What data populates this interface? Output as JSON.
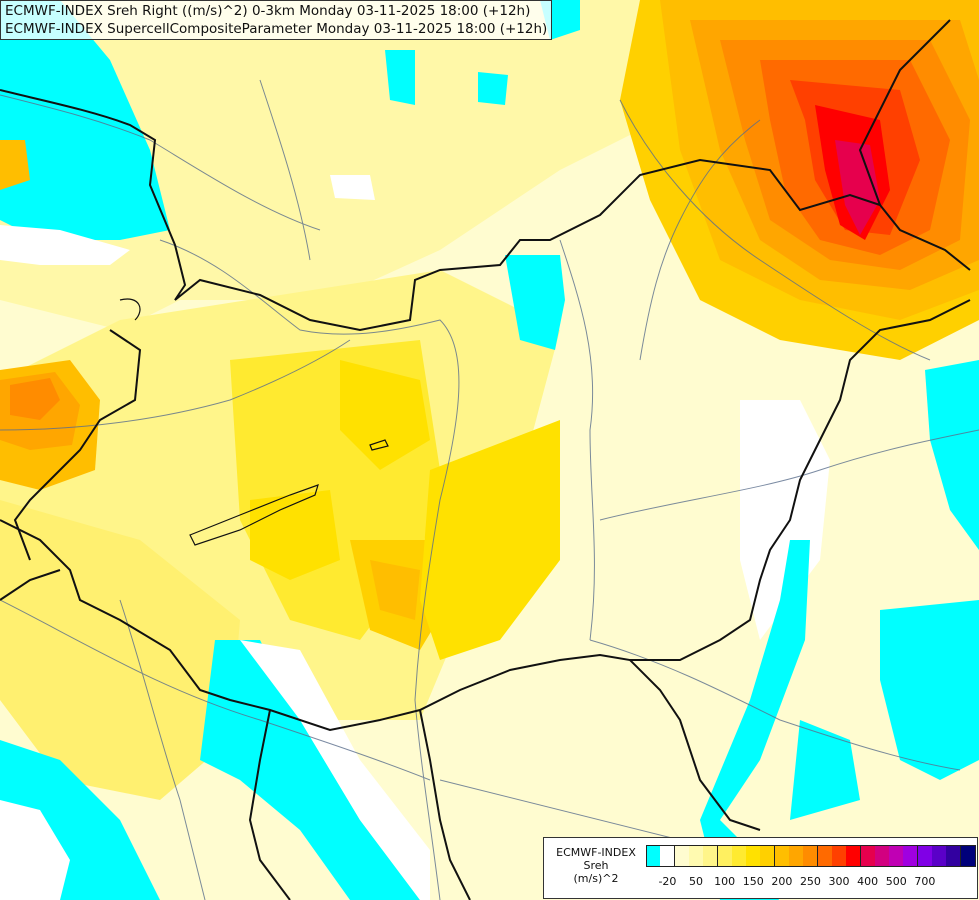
{
  "header": {
    "line1": "ECMWF-INDEX Sreh Right ((m/s)^2) 0-3km Monday 03-11-2025 18:00 (+12h)",
    "line2": "ECMWF-INDEX SupercellCompositeParameter Monday 03-11-2025 18:00 (+12h)"
  },
  "legend": {
    "title1": "ECMWF-INDEX",
    "title2": "Sreh",
    "title3": "(m/s)^2",
    "colors": [
      "#00ffff",
      "#ffffff",
      "#fffcd0",
      "#fffab0",
      "#fff58a",
      "#fff060",
      "#ffea30",
      "#ffe100",
      "#ffd000",
      "#ffbe00",
      "#ffa600",
      "#ff8c00",
      "#ff6a00",
      "#ff4000",
      "#ff0000",
      "#e6004d",
      "#d20080",
      "#c000b4",
      "#a000e0",
      "#8000e6",
      "#5a00c8",
      "#3200a0",
      "#00007a"
    ],
    "ticks": [
      "-20",
      "50",
      "100",
      "150",
      "200",
      "250",
      "300",
      "400",
      "500",
      "700"
    ]
  }
}
